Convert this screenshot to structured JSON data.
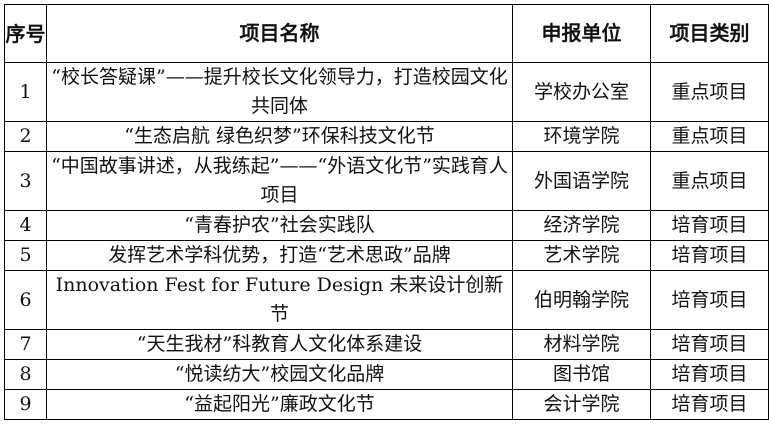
{
  "headers": {
    "index": "序号",
    "name": "项目名称",
    "unit": "申报单位",
    "category": "项目类别"
  },
  "rows": [
    {
      "index": "1",
      "name": "“校长答疑课”——提升校长文化领导力，打造校园文化共同体",
      "unit": "学校办公室",
      "category": "重点项目"
    },
    {
      "index": "2",
      "name": "“生态启航 绿色织梦”环保科技文化节",
      "unit": "环境学院",
      "category": "重点项目"
    },
    {
      "index": "3",
      "name": "“中国故事讲述，从我练起”——“外语文化节”实践育人项目",
      "unit": "外国语学院",
      "category": "重点项目"
    },
    {
      "index": "4",
      "name": "“青春护农”社会实践队",
      "unit": "经济学院",
      "category": "培育项目"
    },
    {
      "index": "5",
      "name": "发挥艺术学科优势，打造“艺术思政”品牌",
      "unit": "艺术学院",
      "category": "培育项目"
    },
    {
      "index": "6",
      "name": "Innovation Fest for Future Design 未来设计创新节",
      "unit": "伯明翰学院",
      "category": "培育项目"
    },
    {
      "index": "7",
      "name": "“天生我材”科教育人文化体系建设",
      "unit": "材料学院",
      "category": "培育项目"
    },
    {
      "index": "8",
      "name": "“悦读纺大”校园文化品牌",
      "unit": "图书馆",
      "category": "培育项目"
    },
    {
      "index": "9",
      "name": "“益起阳光”廉政文化节",
      "unit": "会计学院",
      "category": "培育项目"
    }
  ]
}
